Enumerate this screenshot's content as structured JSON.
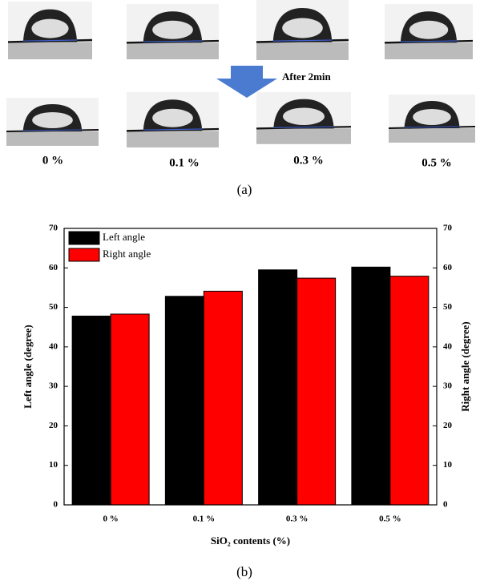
{
  "panel_a": {
    "annotation": "After 2min",
    "labels": [
      "0 %",
      "0.1 %",
      "0.3 %",
      "0.5 %"
    ],
    "caption": "(a)"
  },
  "chart_data": {
    "type": "bar",
    "caption": "(b)",
    "categories": [
      "0 %",
      "0.1 %",
      "0.3 %",
      "0.5 %"
    ],
    "series": [
      {
        "name": "Left angle",
        "color": "#000000",
        "values": [
          47.8,
          52.8,
          59.5,
          60.2
        ]
      },
      {
        "name": "Right angle",
        "color": "#ff0000",
        "values": [
          48.3,
          54.1,
          57.4,
          57.9
        ],
        "axis": "y2"
      }
    ],
    "x_label": "SiO₂ contents (%)",
    "y_label": "Left angle (degree)",
    "y2_label": "Right angle (degree)",
    "ylim": [
      0,
      70
    ],
    "yticks": [
      0,
      10,
      20,
      30,
      40,
      50,
      60,
      70
    ],
    "y2lim": [
      0,
      70
    ],
    "y2ticks": [
      0,
      10,
      20,
      30,
      40,
      50,
      60,
      70
    ],
    "legend": "top-left"
  }
}
